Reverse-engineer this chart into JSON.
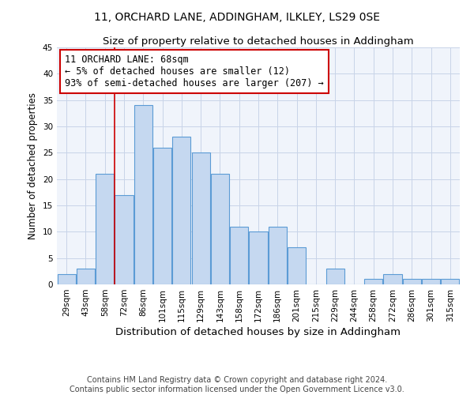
{
  "title": "11, ORCHARD LANE, ADDINGHAM, ILKLEY, LS29 0SE",
  "subtitle": "Size of property relative to detached houses in Addingham",
  "xlabel": "Distribution of detached houses by size in Addingham",
  "ylabel": "Number of detached properties",
  "categories": [
    "29sqm",
    "43sqm",
    "58sqm",
    "72sqm",
    "86sqm",
    "101sqm",
    "115sqm",
    "129sqm",
    "143sqm",
    "158sqm",
    "172sqm",
    "186sqm",
    "201sqm",
    "215sqm",
    "229sqm",
    "244sqm",
    "258sqm",
    "272sqm",
    "286sqm",
    "301sqm",
    "315sqm"
  ],
  "values": [
    2,
    3,
    21,
    17,
    34,
    26,
    28,
    25,
    21,
    11,
    10,
    11,
    7,
    0,
    3,
    0,
    1,
    2,
    1,
    1,
    1
  ],
  "bar_color": "#c5d8f0",
  "bar_edge_color": "#5b9bd5",
  "property_line_x": 2.5,
  "annotation_text": "11 ORCHARD LANE: 68sqm\n← 5% of detached houses are smaller (12)\n93% of semi-detached houses are larger (207) →",
  "annotation_box_color": "#ffffff",
  "annotation_box_edge_color": "#cc0000",
  "annotation_text_color": "#000000",
  "line_color": "#cc0000",
  "background_color": "#f0f4fb",
  "grid_color": "#c8d4e8",
  "ylim": [
    0,
    45
  ],
  "yticks": [
    0,
    5,
    10,
    15,
    20,
    25,
    30,
    35,
    40,
    45
  ],
  "footnote": "Contains HM Land Registry data © Crown copyright and database right 2024.\nContains public sector information licensed under the Open Government Licence v3.0.",
  "title_fontsize": 10,
  "subtitle_fontsize": 9.5,
  "xlabel_fontsize": 9.5,
  "ylabel_fontsize": 8.5,
  "tick_fontsize": 7.5,
  "annotation_fontsize": 8.5,
  "footnote_fontsize": 7
}
